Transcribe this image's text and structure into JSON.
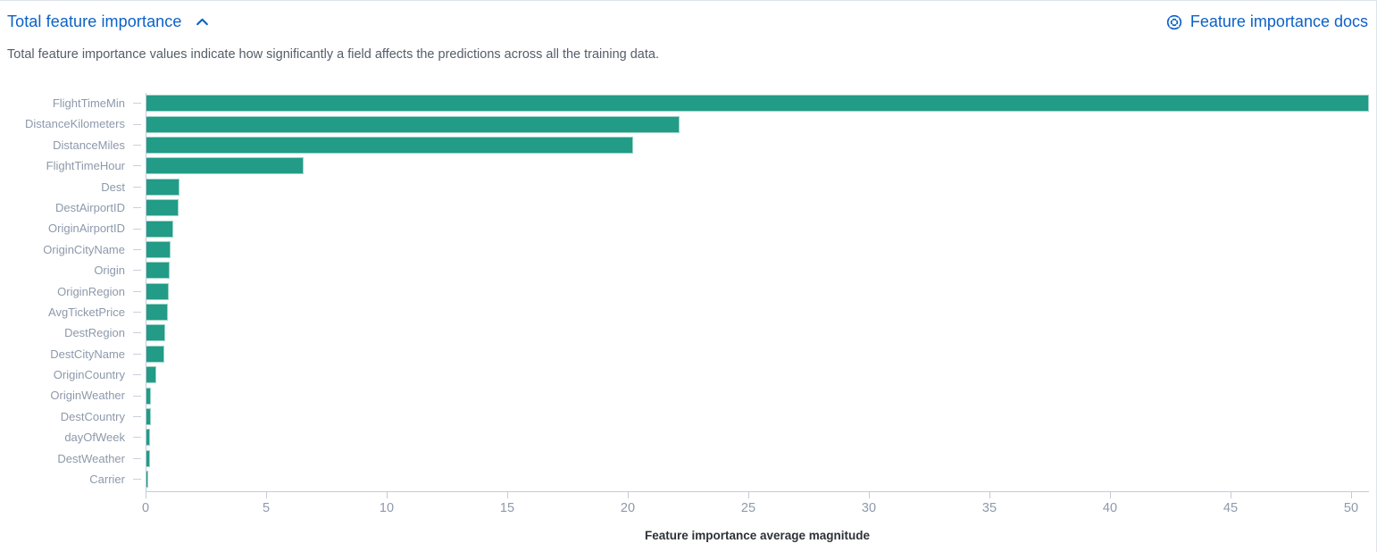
{
  "header": {
    "title": "Total feature importance",
    "docs_link_label": "Feature importance docs",
    "description": "Total feature importance values indicate how significantly a field affects the predictions across all the training data."
  },
  "colors": {
    "accent_blue": "#0b61c8",
    "bar_fill": "#229b87",
    "bar_border": "#9bd4c6",
    "axis_line": "#c3cad9",
    "tick_label": "#8d99ab",
    "body_text": "#555d69"
  },
  "icons": {
    "collapse": "chevron-up-icon",
    "docs": "life-ring-docs-icon"
  },
  "chart_data": {
    "type": "bar",
    "orientation": "horizontal",
    "title": "",
    "xlabel": "Feature importance average magnitude",
    "ylabel": "",
    "xlim": [
      0,
      51
    ],
    "x_ticks": [
      0,
      5,
      10,
      15,
      20,
      25,
      30,
      35,
      40,
      45,
      50
    ],
    "grid": false,
    "legend": "none",
    "categories": [
      "FlightTimeMin",
      "DistanceKilometers",
      "DistanceMiles",
      "FlightTimeHour",
      "Dest",
      "DestAirportID",
      "OriginAirportID",
      "OriginCityName",
      "Origin",
      "OriginRegion",
      "AvgTicketPrice",
      "DestRegion",
      "DestCityName",
      "OriginCountry",
      "OriginWeather",
      "DestCountry",
      "dayOfWeek",
      "DestWeather",
      "Carrier"
    ],
    "values": [
      50.7,
      22.1,
      20.2,
      6.5,
      1.36,
      1.32,
      1.1,
      1.01,
      0.97,
      0.92,
      0.9,
      0.79,
      0.73,
      0.41,
      0.19,
      0.18,
      0.16,
      0.13,
      0.07
    ]
  }
}
